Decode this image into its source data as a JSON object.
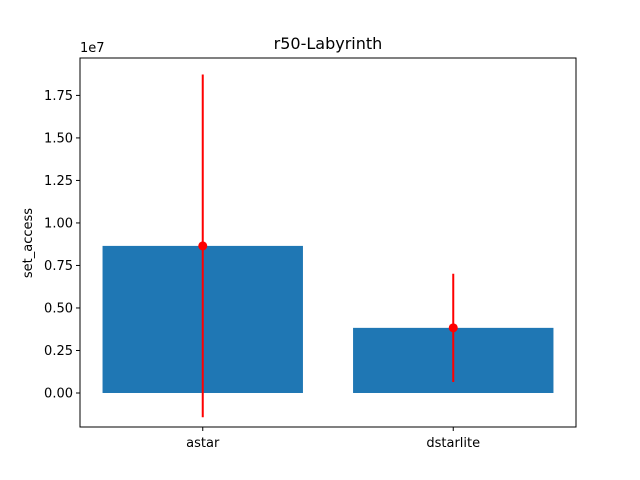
{
  "chart_data": {
    "type": "bar",
    "title": "r50-Labyrinth",
    "xlabel": "",
    "ylabel": "set_access",
    "y_offset_label": "1e7",
    "categories": [
      "astar",
      "dstarlite"
    ],
    "values": [
      8650000,
      3830000
    ],
    "errors": [
      10080000,
      3180000
    ],
    "ylim": [
      -2000000,
      19700000
    ],
    "yticks": [
      0,
      2500000,
      5000000,
      7500000,
      10000000,
      12500000,
      15000000,
      17500000
    ],
    "ytick_labels": [
      "0.00",
      "0.25",
      "0.50",
      "0.75",
      "1.00",
      "1.25",
      "1.50",
      "1.75"
    ],
    "grid": false,
    "colors": {
      "bar": "#1f77b4",
      "error": "#ff0000"
    }
  }
}
